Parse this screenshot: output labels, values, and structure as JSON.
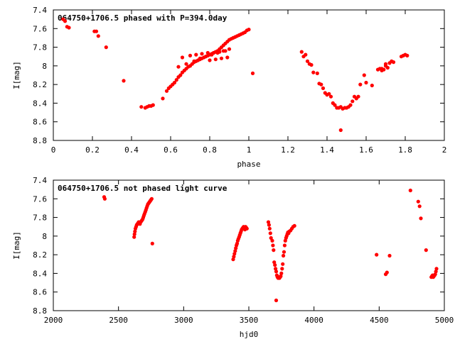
{
  "chart_data": [
    {
      "type": "scatter",
      "title": "064750+1706.5 phased with P=394.0day",
      "xlabel": "phase",
      "ylabel": "I[mag]",
      "xlim": [
        0,
        2
      ],
      "ylim": [
        8.8,
        7.4
      ],
      "y_inverted": true,
      "grid": false,
      "xticks": [
        "0",
        "0.2",
        "0.4",
        "0.6",
        "0.8",
        "1",
        "1.2",
        "1.4",
        "1.6",
        "1.8",
        "2"
      ],
      "yticks": [
        "7.4",
        "7.6",
        "7.8",
        "8",
        "8.2",
        "8.4",
        "8.6",
        "8.8"
      ],
      "point_color": "#ff0000",
      "series": [
        {
          "x": [
            0.05,
            0.06,
            0.07,
            0.08,
            0.21,
            0.22,
            0.23,
            0.27,
            0.36,
            0.45,
            0.47,
            0.48,
            0.49,
            0.5,
            0.51,
            0.56,
            0.58,
            0.59,
            0.6,
            0.61,
            0.62,
            0.63,
            0.64,
            0.65,
            0.66,
            0.67,
            0.68,
            0.69,
            0.7,
            0.71,
            0.72,
            0.73,
            0.74,
            0.75,
            0.76,
            0.77,
            0.78,
            0.79,
            0.8,
            0.81,
            0.82,
            0.83,
            0.84,
            0.85,
            0.86,
            0.87,
            0.88,
            0.89,
            0.9,
            0.91,
            0.92,
            0.93,
            0.94,
            0.95,
            0.96,
            0.97,
            0.98,
            0.99,
            1.0,
            1.02,
            0.66,
            0.7,
            0.73,
            0.76,
            0.79,
            0.82,
            0.85,
            0.88,
            0.64,
            0.68,
            0.72,
            0.75,
            0.78,
            0.81,
            0.84,
            0.87,
            0.9,
            0.8,
            0.83,
            0.86,
            0.89,
            1.27,
            1.28,
            1.29,
            1.3,
            1.31,
            1.32,
            1.33,
            1.35,
            1.36,
            1.37,
            1.38,
            1.39,
            1.4,
            1.41,
            1.42,
            1.43,
            1.44,
            1.45,
            1.46,
            1.47,
            1.48,
            1.49,
            1.5,
            1.51,
            1.52,
            1.53,
            1.54,
            1.55,
            1.56,
            1.57,
            1.59,
            1.6,
            1.63,
            1.66,
            1.67,
            1.68,
            1.69,
            1.7,
            1.71,
            1.72,
            1.73,
            1.74,
            1.78,
            1.79,
            1.8,
            1.81,
            1.47,
            1.68,
            1.7
          ],
          "y": [
            7.5,
            7.52,
            7.58,
            7.59,
            7.63,
            7.63,
            7.68,
            7.8,
            8.16,
            8.44,
            8.45,
            8.44,
            8.43,
            8.43,
            8.42,
            8.35,
            8.27,
            8.24,
            8.22,
            8.2,
            8.18,
            8.15,
            8.12,
            8.1,
            8.07,
            8.05,
            8.03,
            8.01,
            8.0,
            7.98,
            7.96,
            7.95,
            7.94,
            7.93,
            7.92,
            7.91,
            7.9,
            7.89,
            7.88,
            7.87,
            7.86,
            7.85,
            7.84,
            7.82,
            7.8,
            7.78,
            7.76,
            7.74,
            7.72,
            7.71,
            7.7,
            7.69,
            7.68,
            7.67,
            7.66,
            7.65,
            7.64,
            7.62,
            7.61,
            8.08,
            7.91,
            7.89,
            7.88,
            7.87,
            7.86,
            7.86,
            7.85,
            7.84,
            8.01,
            7.98,
            7.95,
            7.92,
            7.9,
            7.88,
            7.86,
            7.84,
            7.82,
            7.94,
            7.93,
            7.92,
            7.91,
            7.85,
            7.9,
            7.88,
            7.95,
            7.98,
            7.99,
            8.07,
            8.08,
            8.19,
            8.2,
            8.24,
            8.29,
            8.31,
            8.3,
            8.33,
            8.4,
            8.42,
            8.45,
            8.45,
            8.44,
            8.46,
            8.45,
            8.45,
            8.44,
            8.42,
            8.38,
            8.33,
            8.35,
            8.33,
            8.2,
            8.1,
            8.18,
            8.21,
            8.04,
            8.03,
            8.05,
            8.04,
            8.0,
            8.02,
            7.97,
            7.95,
            7.96,
            7.9,
            7.89,
            7.88,
            7.89,
            8.69,
            8.03,
            7.98
          ]
        }
      ]
    },
    {
      "type": "scatter",
      "title": "064750+1706.5 not phased light curve",
      "xlabel": "hjd0",
      "ylabel": "I[mag]",
      "xlim": [
        2000,
        5000
      ],
      "ylim": [
        8.8,
        7.4
      ],
      "y_inverted": true,
      "grid": false,
      "xticks": [
        "2000",
        "2500",
        "3000",
        "3500",
        "4000",
        "4500",
        "5000"
      ],
      "yticks": [
        "7.4",
        "7.6",
        "7.8",
        "8",
        "8.2",
        "8.4",
        "8.6",
        "8.8"
      ],
      "point_color": "#ff0000",
      "series": [
        {
          "x": [
            2390,
            2395,
            2620,
            2623,
            2626,
            2630,
            2635,
            2640,
            2645,
            2650,
            2655,
            2660,
            2665,
            2670,
            2675,
            2680,
            2685,
            2690,
            2695,
            2700,
            2705,
            2710,
            2715,
            2720,
            2725,
            2730,
            2735,
            2740,
            2745,
            2750,
            2755,
            2760,
            3380,
            3385,
            3390,
            3395,
            3400,
            3405,
            3410,
            3415,
            3420,
            3425,
            3430,
            3435,
            3440,
            3445,
            3450,
            3455,
            3460,
            3465,
            3470,
            3475,
            3480,
            3485,
            3650,
            3655,
            3660,
            3665,
            3670,
            3680,
            3685,
            3690,
            3695,
            3700,
            3705,
            3710,
            3715,
            3720,
            3725,
            3730,
            3735,
            3740,
            3745,
            3750,
            3755,
            3760,
            3765,
            3770,
            3775,
            3780,
            3785,
            3790,
            3795,
            3800,
            3805,
            3810,
            3820,
            3830,
            3840,
            3850,
            3710,
            4480,
            4550,
            4560,
            4580,
            4740,
            4800,
            4810,
            4820,
            4860,
            4900,
            4905,
            4910,
            4915,
            4920,
            4925,
            4930,
            4935,
            4940
          ],
          "y": [
            7.58,
            7.6,
            8.01,
            7.98,
            7.95,
            7.92,
            7.9,
            7.88,
            7.87,
            7.86,
            7.85,
            7.86,
            7.87,
            7.85,
            7.84,
            7.83,
            7.82,
            7.8,
            7.78,
            7.76,
            7.74,
            7.72,
            7.7,
            7.68,
            7.66,
            7.65,
            7.64,
            7.63,
            7.62,
            7.61,
            7.6,
            8.08,
            8.25,
            8.22,
            8.19,
            8.16,
            8.13,
            8.1,
            8.08,
            8.05,
            8.03,
            8.01,
            7.99,
            7.97,
            7.95,
            7.93,
            7.92,
            7.91,
            7.9,
            7.92,
            7.93,
            7.9,
            7.91,
            7.92,
            7.85,
            7.88,
            7.92,
            7.97,
            8.02,
            8.05,
            8.1,
            8.15,
            8.28,
            8.31,
            8.35,
            8.38,
            8.42,
            8.44,
            8.45,
            8.44,
            8.45,
            8.44,
            8.43,
            8.4,
            8.35,
            8.3,
            8.21,
            8.17,
            8.1,
            8.05,
            8.02,
            8.0,
            7.98,
            7.96,
            7.97,
            7.95,
            7.94,
            7.92,
            7.9,
            7.89,
            8.69,
            8.2,
            8.41,
            8.39,
            8.21,
            7.51,
            7.63,
            7.68,
            7.81,
            8.15,
            8.44,
            8.43,
            8.42,
            8.44,
            8.43,
            8.42,
            8.41,
            8.38,
            8.35
          ]
        }
      ]
    }
  ]
}
